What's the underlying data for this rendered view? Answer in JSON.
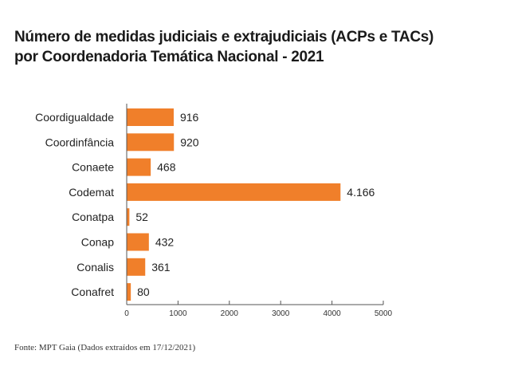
{
  "chart_data": {
    "type": "bar",
    "orientation": "horizontal",
    "title_lines": [
      "Número de medidas judiciais e extrajudiciais (ACPs e TACs)",
      "por Coordenadoria Temática Nacional - 2021"
    ],
    "categories": [
      "Coordigualdade",
      "Coordinfância",
      "Conaete",
      "Codemat",
      "Conatpa",
      "Conap",
      "Conalis",
      "Conafret"
    ],
    "values": [
      916,
      920,
      468,
      4166,
      52,
      432,
      361,
      80
    ],
    "data_labels": [
      "916",
      "920",
      "468",
      "4.166",
      "52",
      "432",
      "361",
      "80"
    ],
    "xlim": [
      0,
      5000
    ],
    "xticks": [
      "0",
      "1000",
      "2000",
      "3000",
      "4000",
      "5000"
    ],
    "grid": false,
    "bar_color": "#f07f2a",
    "source": "Fonte: MPT Gaia (Dados extraídos em 17/12/2021)"
  }
}
